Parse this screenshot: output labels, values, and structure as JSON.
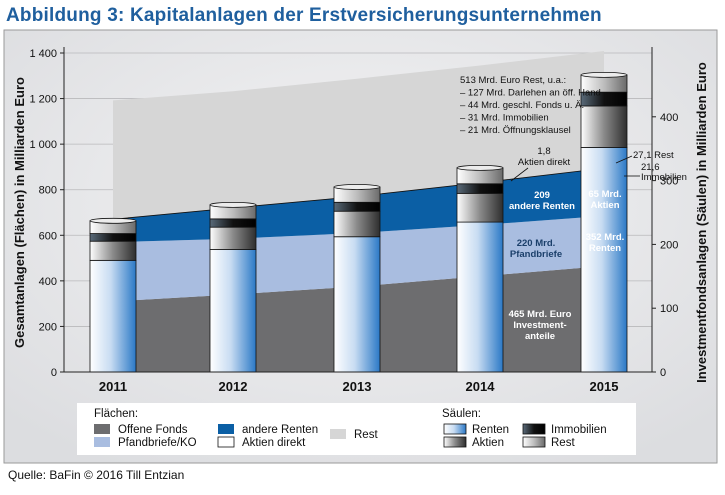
{
  "title": "Abbildung 3: Kapitalanlagen der Erstversicherungsunternehmen",
  "source": "Quelle: BaFin © 2016 Till Entzian",
  "colors": {
    "title": "#1f5f9e",
    "offene_fonds": "#6d6d6f",
    "pfandbriefe": "#a9bde0",
    "andere_renten": "#0b5fa5",
    "aktien_direkt": "#ffffff",
    "rest": "#d6d6d6",
    "panel_bg": "#e7e8ea",
    "bar_renten_light": "#ffffff",
    "bar_renten_dark": "#2a78c6"
  },
  "chart_data": {
    "type": "area",
    "categories": [
      "2011",
      "2012",
      "2013",
      "2014",
      "2015"
    ],
    "ylabel_left": "Gesamtanlagen (Flächen) in Milliarden Euro",
    "ylabel_right": "Investmentfondsanlagen (Säulen) in Milliarden Euro",
    "ylim_left": [
      0,
      1400
    ],
    "yticks_left": [
      "0",
      "200",
      "400",
      "600",
      "800",
      "1 000",
      "1 200",
      "1 400"
    ],
    "ylim_right": [
      0,
      500
    ],
    "yticks_right": [
      "0",
      "100",
      "200",
      "300",
      "400"
    ],
    "grid": true,
    "areas": [
      {
        "name": "Offene Fonds",
        "values": [
          310,
          340,
          375,
          420,
          465
        ]
      },
      {
        "name": "Pfandbriefe/KO",
        "values": [
          260,
          245,
          235,
          225,
          220
        ]
      },
      {
        "name": "andere Renten",
        "values": [
          100,
          135,
          160,
          185,
          209
        ]
      },
      {
        "name": "Aktien direkt",
        "values": [
          2,
          2,
          2,
          2,
          1.8
        ]
      },
      {
        "name": "Rest",
        "values": [
          520,
          510,
          515,
          513,
          513
        ]
      }
    ],
    "bars": [
      {
        "name": "Renten",
        "values": [
          175,
          192,
          212,
          235,
          352
        ]
      },
      {
        "name": "Aktien",
        "values": [
          30,
          35,
          40,
          45,
          65
        ]
      },
      {
        "name": "Immobilien",
        "values": [
          12,
          13,
          14,
          15,
          21.6
        ]
      },
      {
        "name": "Rest",
        "values": [
          20,
          22,
          24,
          25,
          27.1
        ]
      }
    ],
    "annotations": {
      "rest_box": [
        "513 Mrd. Euro Rest, u.a.:",
        "– 127 Mrd. Darlehen an öff. Hand",
        "– 44 Mrd. geschl. Fonds u. Ä.",
        "– 31 Mrd. Immobilien",
        "– 21 Mrd. Öffnungsklausel"
      ],
      "aktien_direkt": [
        "1,8",
        "Aktien direkt"
      ],
      "andere_renten": [
        "209",
        "andere Renten"
      ],
      "pfandbriefe": [
        "220 Mrd.",
        "Pfandbriefe"
      ],
      "investment": [
        "465 Mrd. Euro",
        "Investment-",
        "anteile"
      ],
      "bar_aktien": [
        "65 Mrd.",
        "Aktien"
      ],
      "bar_renten": [
        "352 Mrd.",
        "Renten"
      ],
      "bar_rest": "27,1 Rest",
      "bar_immobilien": [
        "21,6",
        "Immobilien"
      ]
    }
  },
  "legend": {
    "flaechen_title": "Flächen:",
    "saeulen_title": "Säulen:",
    "flaechen": [
      {
        "label": "Offene Fonds",
        "swatch": "offene_fonds"
      },
      {
        "label": "andere Renten",
        "swatch": "andere_renten"
      },
      {
        "label": "Rest",
        "swatch": "rest"
      },
      {
        "label": "Pfandbriefe/KO",
        "swatch": "pfandbriefe"
      },
      {
        "label": "Aktien direkt",
        "swatch": "aktien_direkt"
      }
    ],
    "saeulen": [
      {
        "label": "Renten",
        "swatch": "renten"
      },
      {
        "label": "Immobilien",
        "swatch": "immobilien"
      },
      {
        "label": "Aktien",
        "swatch": "aktien"
      },
      {
        "label": "Rest",
        "swatch": "rest_bar"
      }
    ]
  }
}
